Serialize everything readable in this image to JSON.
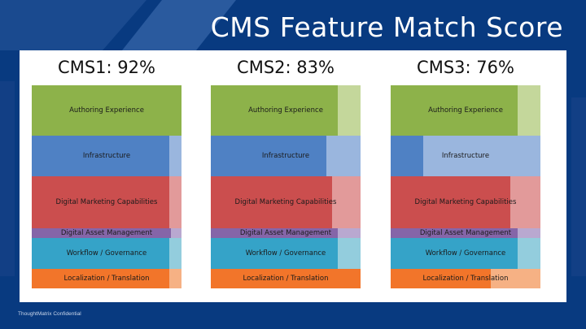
{
  "page_title": "CMS Feature Match Score",
  "footer": "ThoughtMatrix Confidential",
  "colors": {
    "background": "#083a80",
    "card": "#ffffff",
    "stripe": "#1d4e95"
  },
  "chart_data": [
    {
      "type": "bar",
      "title": "CMS1: 92%",
      "categories": [
        "Authoring Experience",
        "Infrastructure",
        "Digital Marketing Capabilities",
        "Digital Asset Management",
        "Workflow / Governance",
        "Localization / Translation"
      ],
      "values": [
        100,
        92,
        92,
        93,
        92,
        92
      ],
      "colors": [
        "#8db24a",
        "#4f81c4",
        "#cb4e4e",
        "#8565a8",
        "#35a3c8",
        "#f2752a"
      ],
      "remainder_colors": [
        "#c4d79b",
        "#9ab6de",
        "#e29a9a",
        "#b9a8d0",
        "#93cddd",
        "#f6b184"
      ]
    },
    {
      "type": "bar",
      "title": "CMS2: 83%",
      "categories": [
        "Authoring Experience",
        "Infrastructure",
        "Digital Marketing Capabilities",
        "Digital Asset Management",
        "Workflow / Governance",
        "Localization / Translation"
      ],
      "values": [
        85,
        77,
        81,
        85,
        85,
        100
      ],
      "colors": [
        "#8db24a",
        "#4f81c4",
        "#cb4e4e",
        "#8565a8",
        "#35a3c8",
        "#f2752a"
      ],
      "remainder_colors": [
        "#c4d79b",
        "#9ab6de",
        "#e29a9a",
        "#b9a8d0",
        "#93cddd",
        "#f6b184"
      ]
    },
    {
      "type": "bar",
      "title": "CMS3: 76%",
      "categories": [
        "Authoring Experience",
        "Infrastructure",
        "Digital Marketing Capabilities",
        "Digital Asset Management",
        "Workflow / Governance",
        "Localization / Translation"
      ],
      "values": [
        85,
        22,
        80,
        85,
        85,
        67
      ],
      "colors": [
        "#8db24a",
        "#4f81c4",
        "#cb4e4e",
        "#8565a8",
        "#35a3c8",
        "#f2752a"
      ],
      "remainder_colors": [
        "#c4d79b",
        "#9ab6de",
        "#e29a9a",
        "#b9a8d0",
        "#93cddd",
        "#f6b184"
      ]
    }
  ]
}
